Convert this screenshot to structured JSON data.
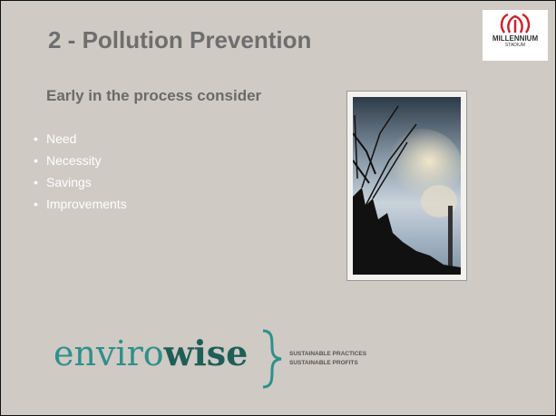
{
  "slide": {
    "title": "2 - Pollution Prevention",
    "logo": {
      "line1": "MILLENNIUM",
      "line2": "STADIUM"
    },
    "subheading": "Early in the process consider",
    "bullets": [
      "Need",
      "Necessity",
      "Savings",
      "Improvements"
    ],
    "brand": {
      "part1": "enviro",
      "part2": "wise",
      "tagline1": "SUSTAINABLE PRACTICES",
      "tagline2": "SUSTAINABLE PROFITS"
    }
  }
}
